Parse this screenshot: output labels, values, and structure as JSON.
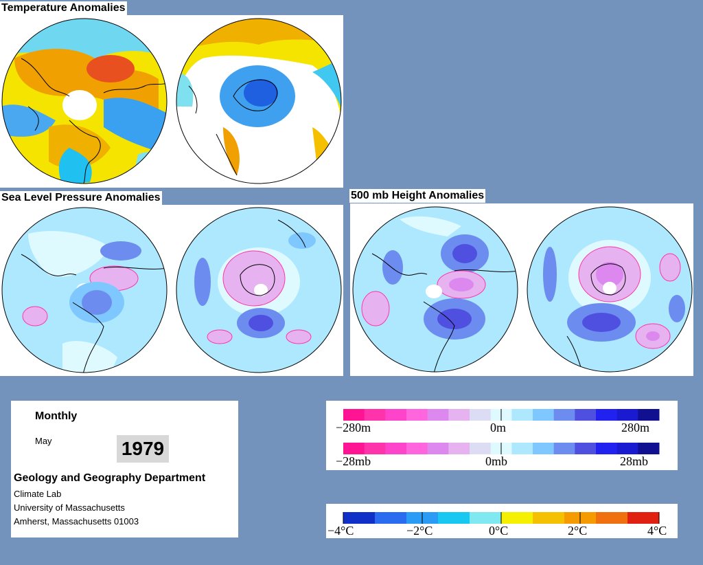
{
  "panels": {
    "temperature_title": "Temperature Anomalies",
    "slp_title": "Sea Level Pressure Anomalies",
    "height_title": "500 mb Height Anomalies"
  },
  "info": {
    "period": "Monthly",
    "month": "May",
    "year": "1979",
    "department": "Geology and Geography Department",
    "lab": "Climate Lab",
    "university": "University of Massachusetts",
    "address": "Amherst, Massachusetts 01003"
  },
  "legends": {
    "height": {
      "min": "−280m",
      "mid": "0m",
      "max": "280m"
    },
    "pressure": {
      "min": "−28mb",
      "mid": "0mb",
      "max": "28mb"
    },
    "temperature": {
      "labels": [
        "−4°C",
        "−2°C",
        "0°C",
        "2°C",
        "4°C"
      ]
    }
  },
  "colors": {
    "background": "#7393bd",
    "anomaly_scale": [
      "#ff1493",
      "#ff33aa",
      "#ff44cc",
      "#ff66dd",
      "#dd88ee",
      "#e6b3f0",
      "#dcdcf5",
      "#dffaff",
      "#aee8ff",
      "#7fc8ff",
      "#6c8cf0",
      "#5050e0",
      "#2222f0",
      "#1a1ad0",
      "#101090"
    ],
    "temperature_scale": [
      "#1030c8",
      "#2a6cf0",
      "#2a9cf5",
      "#19c8f0",
      "#7fe8f0",
      "#f5f000",
      "#f5c000",
      "#f59a00",
      "#f07010",
      "#e02010"
    ]
  }
}
